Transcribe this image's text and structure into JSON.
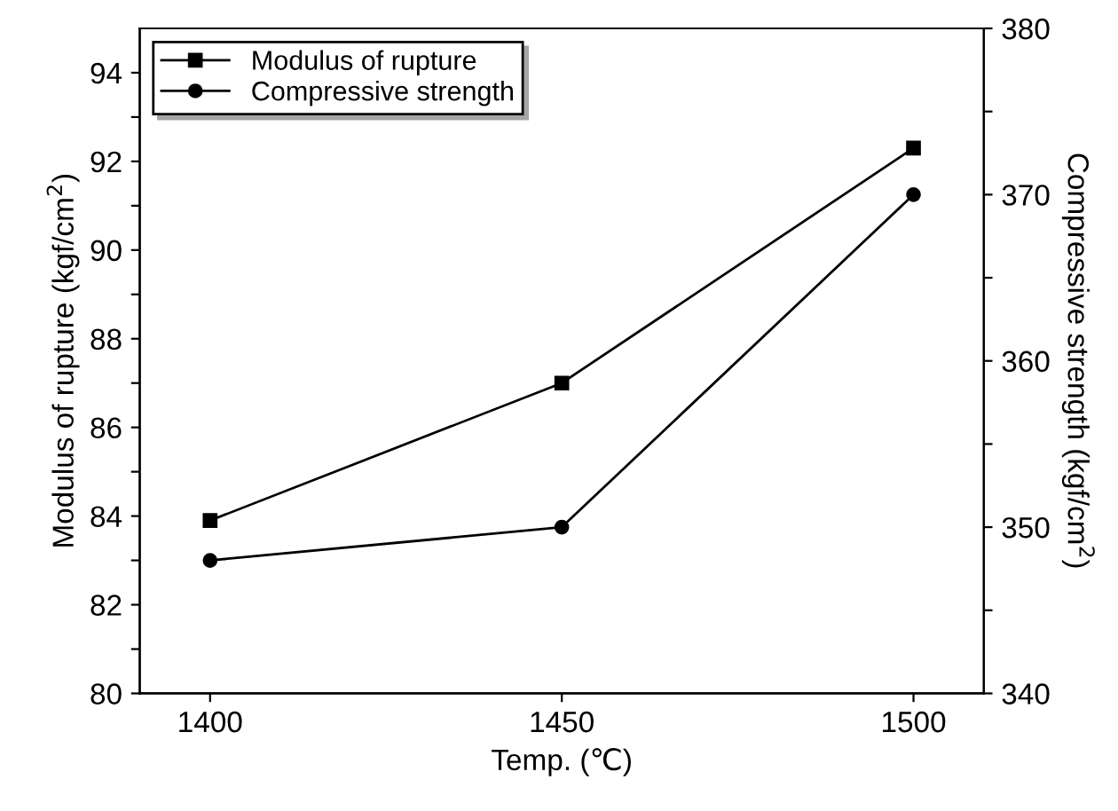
{
  "chart_data": {
    "type": "line",
    "xlabel": "Temp. (℃)",
    "ylabel": "Modulus of rupture (kgf/cm$^{2}$)",
    "y2label": "Compressive strength (kgf/cm$^{2}$)",
    "x": [
      1400,
      1450,
      1500
    ],
    "series": [
      {
        "name": "Modulus of rupture",
        "color": "#000000",
        "marker": "square",
        "values": [
          83.9,
          87.0,
          92.3
        ]
      },
      {
        "name": "Compressive strength",
        "color": "#000000",
        "marker": "circle",
        "axis": "y2",
        "values": [
          348,
          350,
          370
        ]
      }
    ],
    "xlim": [
      1390,
      1510
    ],
    "xticks": [
      1400,
      1450,
      1500
    ],
    "ylim": [
      80,
      95
    ],
    "yticks": [
      80,
      {
        "value": 81,
        "label": null
      },
      82,
      {
        "value": 83,
        "label": null
      },
      84,
      {
        "value": 85,
        "label": null
      },
      86,
      {
        "value": 87,
        "label": null
      },
      88,
      {
        "value": 89,
        "label": null
      },
      90,
      {
        "value": 91,
        "label": null
      },
      92,
      {
        "value": 93,
        "label": null
      },
      94
    ],
    "y2lim": [
      340,
      380
    ],
    "y2ticks": [
      340,
      {
        "value": 345,
        "label": null
      },
      350,
      {
        "value": 355,
        "label": null
      },
      360,
      {
        "value": 365,
        "label": null
      },
      370,
      {
        "value": 375,
        "label": null
      },
      380
    ],
    "legend": "top left",
    "grid": false,
    "line_style": "solid"
  }
}
